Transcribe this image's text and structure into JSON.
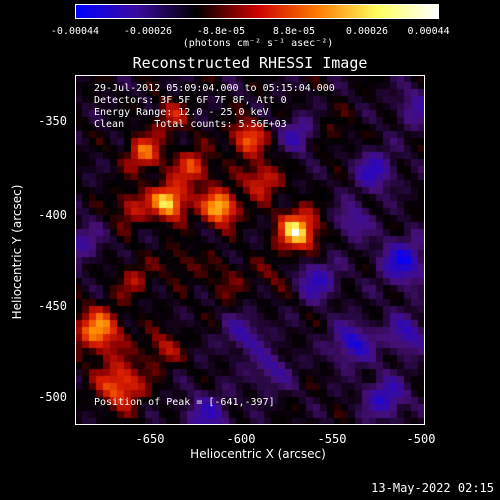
{
  "colorbar": {
    "ticks": [
      "-0.00044",
      "-0.00026",
      "-8.8e-05",
      "8.8e-05",
      "0.00026",
      "0.00044"
    ],
    "units": "(photons cm⁻² s⁻¹ asec⁻²)",
    "colors": [
      "#0000ff",
      "#3a0aa0",
      "#000000",
      "#cc0000",
      "#ff7a00",
      "#ffff60",
      "#ffffff"
    ]
  },
  "info": {
    "time_range": "29-Jul-2012 05:09:04.000 to 05:15:04.000",
    "detectors": "Detectors: 3F 5F 6F 7F 8F, Att 0",
    "energy": "Energy Range: 12.0 - 25.0 keV",
    "clean": "Clean     Total counts: 5.56E+03",
    "peak": "Position of Peak = [-641,-397]"
  },
  "footer": {
    "timestamp": "13-May-2022 02:15"
  },
  "chart_data": {
    "type": "heatmap",
    "title": "Reconstructed RHESSI Image",
    "xlabel": "Heliocentric X (arcsec)",
    "ylabel": "Heliocentric Y (arcsec)",
    "xlim": [
      -693,
      -500
    ],
    "ylim": [
      -520,
      -327
    ],
    "x_ticks": [
      "-650",
      "-600",
      "-550",
      "-500"
    ],
    "y_ticks": [
      "-350",
      "-400",
      "-450",
      "-500"
    ],
    "x_tick_values": [
      -650,
      -600,
      -550,
      -500
    ],
    "y_tick_values": [
      -350,
      -400,
      -450,
      -500
    ],
    "value_range": [
      -0.00044,
      0.00044
    ],
    "peak_position": [
      -641,
      -397
    ],
    "sources": [
      {
        "x": -641,
        "y": -397,
        "amp": 0.00044,
        "sigma": 7
      },
      {
        "x": -613,
        "y": -400,
        "amp": 0.00042,
        "sigma": 7
      },
      {
        "x": -570,
        "y": -413,
        "amp": 0.00044,
        "sigma": 8
      },
      {
        "x": -655,
        "y": -370,
        "amp": 0.0003,
        "sigma": 7
      },
      {
        "x": -628,
        "y": -378,
        "amp": 0.00027,
        "sigma": 7
      },
      {
        "x": -598,
        "y": -362,
        "amp": 0.0003,
        "sigma": 7
      },
      {
        "x": -640,
        "y": -350,
        "amp": 0.00018,
        "sigma": 7
      },
      {
        "x": -590,
        "y": -385,
        "amp": 0.00026,
        "sigma": 7
      },
      {
        "x": -662,
        "y": -400,
        "amp": 0.0002,
        "sigma": 7
      },
      {
        "x": -680,
        "y": -468,
        "amp": 0.00035,
        "sigma": 9
      },
      {
        "x": -668,
        "y": -498,
        "amp": 0.00032,
        "sigma": 9
      },
      {
        "x": -645,
        "y": -478,
        "amp": 0.00018,
        "sigma": 7
      },
      {
        "x": -660,
        "y": -440,
        "amp": 0.00016,
        "sigma": 7
      },
      {
        "x": -610,
        "y": -440,
        "amp": 0.0001,
        "sigma": 9
      },
      {
        "x": -635,
        "y": -430,
        "amp": 0.00011,
        "sigma": 7
      },
      {
        "x": -583,
        "y": -438,
        "amp": 9e-05,
        "sigma": 7
      },
      {
        "x": -550,
        "y": -360,
        "amp": 8e-05,
        "sigma": 8
      },
      {
        "x": -560,
        "y": -440,
        "amp": -0.00026,
        "sigma": 8
      },
      {
        "x": -540,
        "y": -475,
        "amp": -0.0003,
        "sigma": 8
      },
      {
        "x": -512,
        "y": -430,
        "amp": -0.00032,
        "sigma": 9
      },
      {
        "x": -528,
        "y": -380,
        "amp": -0.00026,
        "sigma": 8
      },
      {
        "x": -540,
        "y": -408,
        "amp": -0.0002,
        "sigma": 7
      },
      {
        "x": -522,
        "y": -505,
        "amp": -0.00028,
        "sigma": 8
      },
      {
        "x": -585,
        "y": -490,
        "amp": -0.00018,
        "sigma": 8
      },
      {
        "x": -620,
        "y": -515,
        "amp": -0.00022,
        "sigma": 9
      },
      {
        "x": -600,
        "y": -470,
        "amp": -0.0002,
        "sigma": 8
      },
      {
        "x": -570,
        "y": -360,
        "amp": -0.00022,
        "sigma": 7
      },
      {
        "x": -505,
        "y": -345,
        "amp": -0.00018,
        "sigma": 8
      },
      {
        "x": -690,
        "y": -420,
        "amp": -0.00018,
        "sigma": 8
      },
      {
        "x": -510,
        "y": -470,
        "amp": -0.00024,
        "sigma": 8
      }
    ]
  }
}
